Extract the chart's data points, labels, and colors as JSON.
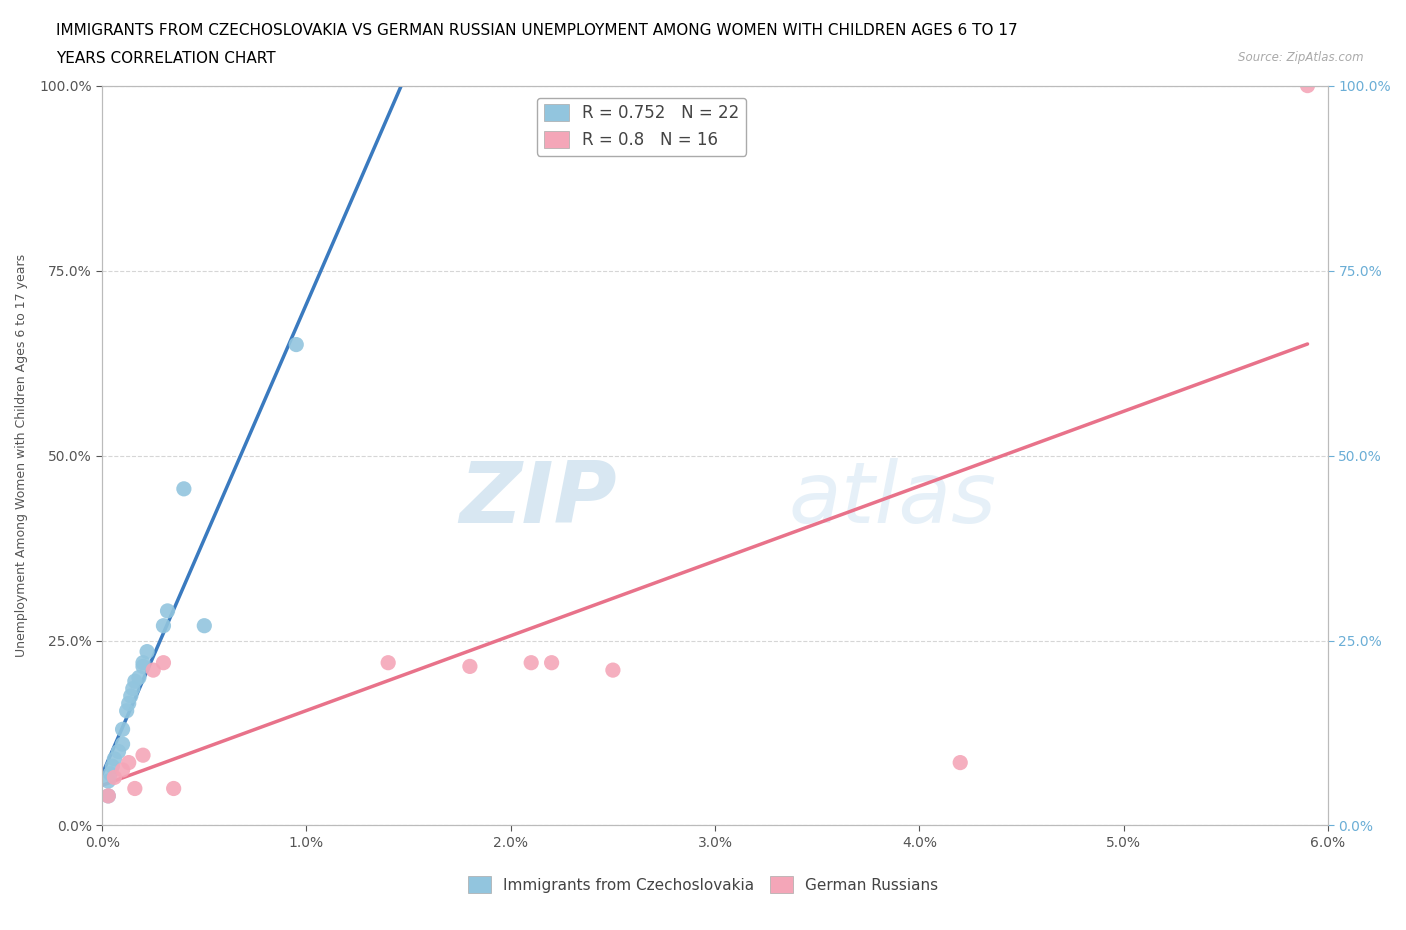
{
  "title_line1": "IMMIGRANTS FROM CZECHOSLOVAKIA VS GERMAN RUSSIAN UNEMPLOYMENT AMONG WOMEN WITH CHILDREN AGES 6 TO 17",
  "title_line2": "YEARS CORRELATION CHART",
  "source": "Source: ZipAtlas.com",
  "ylabel": "Unemployment Among Women with Children Ages 6 to 17 years",
  "xlim": [
    0.0,
    0.06
  ],
  "ylim": [
    0.0,
    1.0
  ],
  "xticks": [
    0.0,
    0.01,
    0.02,
    0.03,
    0.04,
    0.05,
    0.06
  ],
  "xticklabels": [
    "0.0%",
    "1.0%",
    "2.0%",
    "3.0%",
    "4.0%",
    "5.0%",
    "6.0%"
  ],
  "yticks": [
    0.0,
    0.25,
    0.5,
    0.75,
    1.0
  ],
  "yticklabels": [
    "0.0%",
    "25.0%",
    "50.0%",
    "75.0%",
    "100.0%"
  ],
  "blue_color": "#92c5de",
  "pink_color": "#f4a6b8",
  "blue_line_color": "#3a7abf",
  "pink_line_color": "#e8728a",
  "blue_label": "Immigrants from Czechoslovakia",
  "pink_label": "German Russians",
  "blue_R": 0.752,
  "blue_N": 22,
  "pink_R": 0.8,
  "pink_N": 16,
  "watermark_ZIP": "ZIP",
  "watermark_atlas": "atlas",
  "blue_scatter_x": [
    0.0003,
    0.0003,
    0.0004,
    0.0005,
    0.0006,
    0.0008,
    0.001,
    0.001,
    0.0012,
    0.0013,
    0.0014,
    0.0015,
    0.0016,
    0.0018,
    0.002,
    0.002,
    0.0022,
    0.003,
    0.0032,
    0.004,
    0.005,
    0.0095
  ],
  "blue_scatter_y": [
    0.04,
    0.06,
    0.07,
    0.08,
    0.09,
    0.1,
    0.11,
    0.13,
    0.155,
    0.165,
    0.175,
    0.185,
    0.195,
    0.2,
    0.215,
    0.22,
    0.235,
    0.27,
    0.29,
    0.455,
    0.27,
    0.65
  ],
  "pink_scatter_x": [
    0.0003,
    0.0006,
    0.001,
    0.0013,
    0.0016,
    0.002,
    0.0025,
    0.003,
    0.0035,
    0.014,
    0.018,
    0.021,
    0.022,
    0.025,
    0.042,
    0.059
  ],
  "pink_scatter_y": [
    0.04,
    0.065,
    0.075,
    0.085,
    0.05,
    0.095,
    0.21,
    0.22,
    0.05,
    0.22,
    0.215,
    0.22,
    0.22,
    0.21,
    0.085,
    1.0
  ],
  "grid_color": "#cccccc",
  "title_fontsize": 11,
  "axis_label_fontsize": 9,
  "tick_fontsize": 10,
  "left_tick_color": "#555555",
  "right_tick_color": "#6baed6"
}
